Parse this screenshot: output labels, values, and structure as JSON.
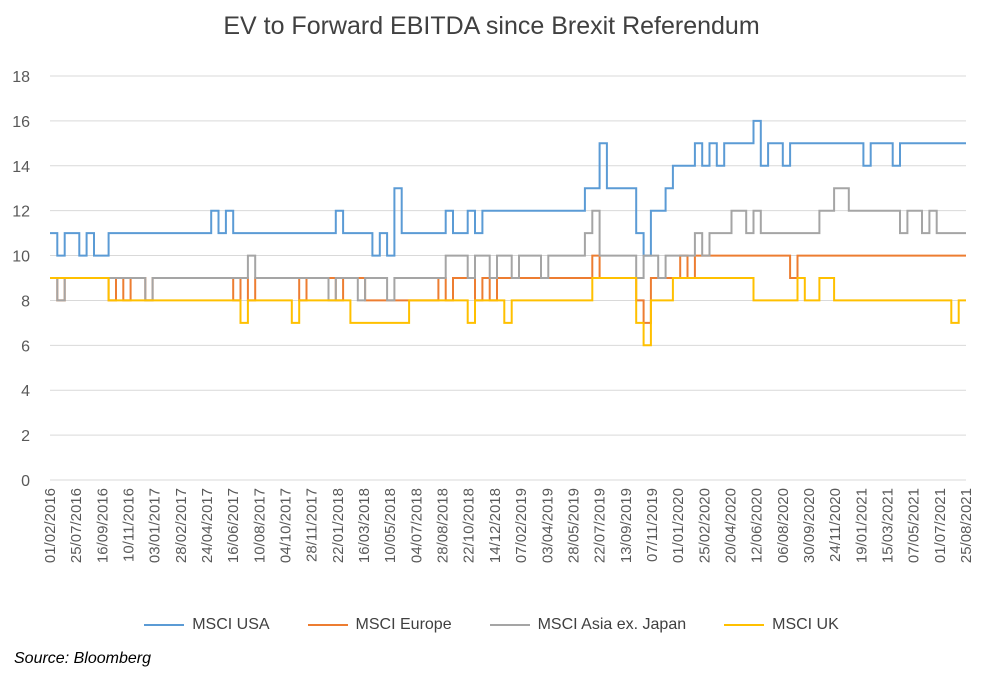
{
  "chart_data": {
    "type": "line",
    "title": "EV to Forward EBITDA since Brexit Referendum",
    "source": "Source: Bloomberg",
    "xlabel": "",
    "ylabel": "",
    "ylim": [
      0,
      18
    ],
    "yticks": [
      0,
      2,
      4,
      6,
      8,
      10,
      12,
      14,
      16,
      18
    ],
    "grid": true,
    "legend_position": "bottom",
    "xticks": [
      "01/02/2016",
      "25/07/2016",
      "16/09/2016",
      "10/11/2016",
      "03/01/2017",
      "28/02/2017",
      "24/04/2017",
      "16/06/2017",
      "10/08/2017",
      "04/10/2017",
      "28/11/2017",
      "22/01/2018",
      "16/03/2018",
      "10/05/2018",
      "04/07/2018",
      "28/08/2018",
      "22/10/2018",
      "14/12/2018",
      "07/02/2019",
      "03/04/2019",
      "28/05/2019",
      "22/07/2019",
      "13/09/2019",
      "07/11/2019",
      "01/01/2020",
      "25/02/2020",
      "20/04/2020",
      "12/06/2020",
      "06/08/2020",
      "30/09/2020",
      "24/11/2020",
      "19/01/2021",
      "15/03/2021",
      "07/05/2021",
      "01/07/2021",
      "25/08/2021"
    ],
    "series": [
      {
        "name": "MSCI USA",
        "color": "#5B9BD5",
        "values": [
          11,
          10,
          11,
          11,
          10,
          11,
          10,
          10,
          11,
          11,
          11,
          11,
          11,
          11,
          11,
          11,
          11,
          11,
          11,
          11,
          11,
          11,
          12,
          11,
          12,
          11,
          11,
          11,
          11,
          11,
          11,
          11,
          11,
          11,
          11,
          11,
          11,
          11,
          11,
          12,
          11,
          11,
          11,
          11,
          10,
          11,
          10,
          13,
          11,
          11,
          11,
          11,
          11,
          11,
          12,
          11,
          11,
          12,
          11,
          12,
          12,
          12,
          12,
          12,
          12,
          12,
          12,
          12,
          12,
          12,
          12,
          12,
          12,
          13,
          13,
          15,
          13,
          13,
          13,
          13,
          11,
          10,
          12,
          12,
          13,
          14,
          14,
          14,
          15,
          14,
          15,
          14,
          15,
          15,
          15,
          15,
          16,
          14,
          15,
          15,
          14,
          15,
          15,
          15,
          15,
          15,
          15,
          15,
          15,
          15,
          15,
          14,
          15,
          15,
          15,
          14,
          15,
          15,
          15,
          15,
          15,
          15,
          15,
          15,
          15,
          15
        ]
      },
      {
        "name": "MSCI Europe",
        "color": "#ED7D31",
        "values": [
          9,
          8,
          9,
          9,
          9,
          9,
          9,
          9,
          8,
          9,
          8,
          9,
          9,
          8,
          9,
          9,
          9,
          9,
          9,
          9,
          9,
          9,
          9,
          9,
          9,
          8,
          9,
          8,
          9,
          9,
          9,
          9,
          9,
          9,
          8,
          9,
          9,
          9,
          9,
          8,
          9,
          9,
          9,
          8,
          8,
          8,
          8,
          8,
          8,
          8,
          8,
          8,
          8,
          9,
          8,
          9,
          9,
          9,
          8,
          9,
          8,
          9,
          9,
          9,
          9,
          9,
          9,
          9,
          9,
          9,
          9,
          9,
          9,
          9,
          10,
          9,
          9,
          9,
          9,
          9,
          8,
          7,
          9,
          9,
          9,
          9,
          10,
          9,
          10,
          10,
          10,
          10,
          10,
          10,
          10,
          10,
          10,
          10,
          10,
          10,
          10,
          9,
          10,
          10,
          10,
          10,
          10,
          10,
          10,
          10,
          10,
          10,
          10,
          10,
          10,
          10,
          10,
          10,
          10,
          10,
          10,
          10,
          10,
          10,
          10,
          10
        ]
      },
      {
        "name": "MSCI Asia ex. Japan",
        "color": "#A5A5A5",
        "values": [
          9,
          8,
          9,
          9,
          9,
          9,
          9,
          9,
          9,
          9,
          9,
          9,
          9,
          8,
          9,
          9,
          9,
          9,
          9,
          9,
          9,
          9,
          9,
          9,
          9,
          9,
          9,
          10,
          9,
          9,
          9,
          9,
          9,
          9,
          9,
          9,
          9,
          9,
          8,
          9,
          9,
          9,
          8,
          9,
          9,
          9,
          8,
          9,
          9,
          9,
          9,
          9,
          9,
          9,
          10,
          10,
          10,
          9,
          10,
          10,
          9,
          10,
          10,
          9,
          10,
          10,
          10,
          9,
          10,
          10,
          10,
          10,
          10,
          11,
          12,
          10,
          10,
          10,
          10,
          10,
          9,
          10,
          10,
          9,
          10,
          10,
          10,
          10,
          11,
          10,
          11,
          11,
          11,
          12,
          12,
          11,
          12,
          11,
          11,
          11,
          11,
          11,
          11,
          11,
          11,
          12,
          12,
          13,
          13,
          12,
          12,
          12,
          12,
          12,
          12,
          12,
          11,
          12,
          12,
          11,
          12,
          11,
          11,
          11,
          11,
          11
        ]
      },
      {
        "name": "MSCI UK",
        "color": "#FFC000",
        "values": [
          9,
          9,
          9,
          9,
          9,
          9,
          9,
          9,
          8,
          8,
          8,
          8,
          8,
          8,
          8,
          8,
          8,
          8,
          8,
          8,
          8,
          8,
          8,
          8,
          8,
          8,
          7,
          8,
          8,
          8,
          8,
          8,
          8,
          7,
          8,
          8,
          8,
          8,
          8,
          8,
          8,
          7,
          7,
          7,
          7,
          7,
          7,
          7,
          7,
          8,
          8,
          8,
          8,
          8,
          8,
          8,
          8,
          7,
          8,
          8,
          8,
          8,
          7,
          8,
          8,
          8,
          8,
          8,
          8,
          8,
          8,
          8,
          8,
          8,
          9,
          9,
          9,
          9,
          9,
          9,
          7,
          6,
          8,
          8,
          8,
          9,
          9,
          9,
          9,
          9,
          9,
          9,
          9,
          9,
          9,
          9,
          8,
          8,
          8,
          8,
          8,
          8,
          9,
          8,
          8,
          9,
          9,
          8,
          8,
          8,
          8,
          8,
          8,
          8,
          8,
          8,
          8,
          8,
          8,
          8,
          8,
          8,
          8,
          7,
          8,
          8
        ]
      }
    ]
  }
}
